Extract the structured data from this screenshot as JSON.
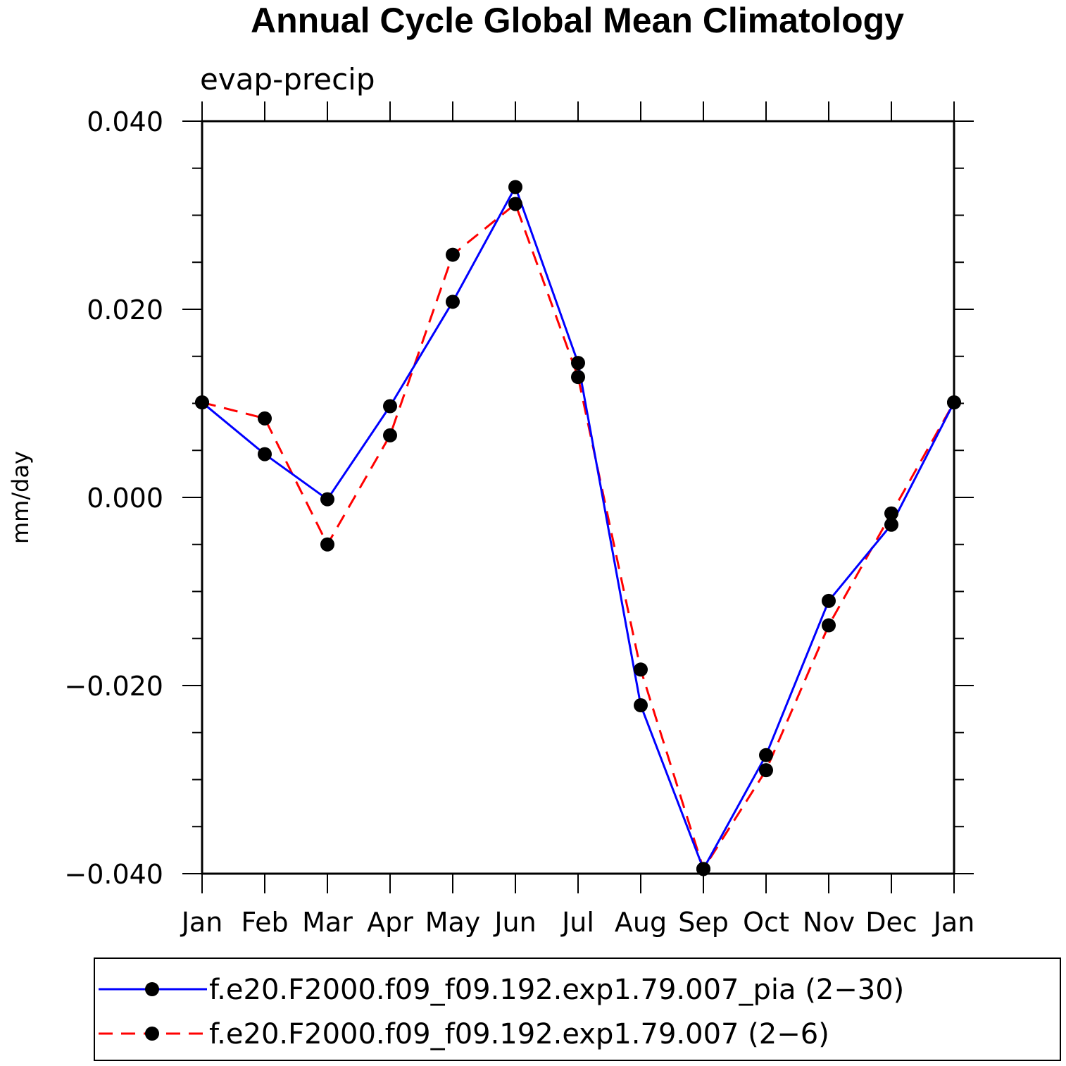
{
  "chart_data": {
    "type": "line",
    "title": "Annual Cycle Global Mean Climatology",
    "subtitle": "evap-precip",
    "ylabel": "mm/day",
    "xlabel": "",
    "categories": [
      "Jan",
      "Feb",
      "Mar",
      "Apr",
      "May",
      "Jun",
      "Jul",
      "Aug",
      "Sep",
      "Oct",
      "Nov",
      "Dec",
      "Jan"
    ],
    "ylim": [
      -0.04,
      0.04
    ],
    "yticks": [
      0.04,
      0.02,
      0.0,
      -0.02,
      -0.04
    ],
    "ytick_labels": [
      "0.040",
      "0.020",
      "0.000",
      "−0.020",
      "−0.040"
    ],
    "legend_position": "bottom",
    "series": [
      {
        "name": "f.e20.F2000.f09_f09.192.exp1.79.007_pia (2−30)",
        "color": "#0000ff",
        "style": "solid",
        "marker": "filled-circle",
        "values": [
          0.0101,
          0.0046,
          -0.0002,
          0.0097,
          0.0208,
          0.033,
          0.0143,
          -0.0221,
          -0.0395,
          -0.0274,
          -0.011,
          -0.0029,
          0.0101
        ]
      },
      {
        "name": "f.e20.F2000.f09_f09.192.exp1.79.007 (2−6)",
        "color": "#ff0000",
        "style": "dashed",
        "marker": "filled-circle",
        "values": [
          0.0101,
          0.0084,
          -0.005,
          0.0066,
          0.0258,
          0.0312,
          0.0128,
          -0.0183,
          -0.0395,
          -0.029,
          -0.0136,
          -0.0017,
          0.0101
        ]
      }
    ]
  }
}
